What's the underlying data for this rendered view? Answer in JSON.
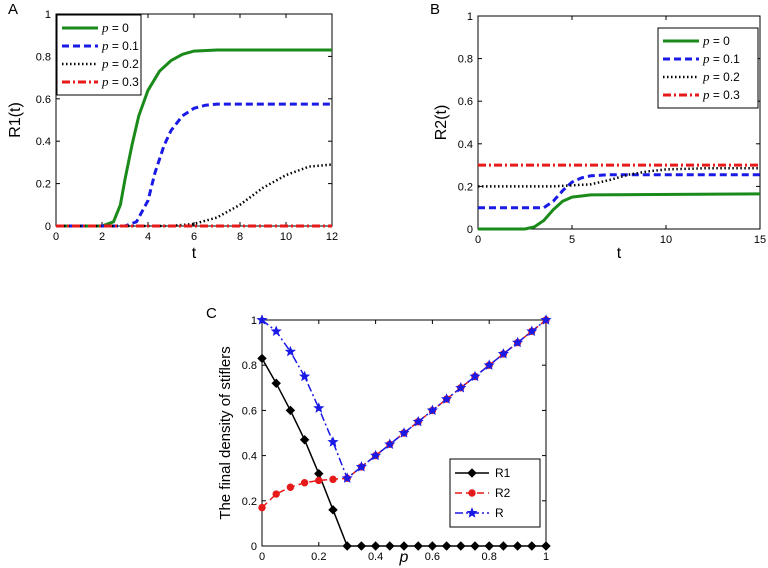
{
  "chart_data": [
    {
      "panel_letter": "A",
      "type": "line",
      "xlabel": "t",
      "ylabel": "R1(t)",
      "xlim": [
        0,
        12
      ],
      "ylim": [
        0,
        1
      ],
      "xticks": [
        0,
        2,
        4,
        6,
        8,
        10,
        12
      ],
      "yticks": [
        0,
        0.2,
        0.4,
        0.6,
        0.8,
        1
      ],
      "legend_position": "top-left",
      "series": [
        {
          "name": "p = 0",
          "p_label": "p",
          "value_label": "= 0",
          "color": "#1a8a1a",
          "dash": "solid",
          "points": [
            [
              0,
              0
            ],
            [
              2,
              0
            ],
            [
              2.5,
              0.02
            ],
            [
              2.8,
              0.1
            ],
            [
              3,
              0.22
            ],
            [
              3.3,
              0.38
            ],
            [
              3.6,
              0.52
            ],
            [
              4,
              0.64
            ],
            [
              4.5,
              0.73
            ],
            [
              5,
              0.78
            ],
            [
              5.5,
              0.81
            ],
            [
              6,
              0.825
            ],
            [
              7,
              0.83
            ],
            [
              12,
              0.83
            ]
          ]
        },
        {
          "name": "p = 0.1",
          "p_label": "p",
          "value_label": "= 0.1",
          "color": "#1a1ae6",
          "dash": "dashed",
          "points": [
            [
              0,
              0
            ],
            [
              3,
              0
            ],
            [
              3.5,
              0.02
            ],
            [
              4,
              0.12
            ],
            [
              4.3,
              0.25
            ],
            [
              4.7,
              0.38
            ],
            [
              5,
              0.45
            ],
            [
              5.5,
              0.52
            ],
            [
              6,
              0.555
            ],
            [
              6.5,
              0.57
            ],
            [
              7,
              0.575
            ],
            [
              12,
              0.575
            ]
          ]
        },
        {
          "name": "p = 0.2",
          "p_label": "p",
          "value_label": "= 0.2",
          "color": "#000000",
          "dash": "dotted",
          "points": [
            [
              0,
              0
            ],
            [
              5,
              0
            ],
            [
              6,
              0.01
            ],
            [
              7,
              0.04
            ],
            [
              8,
              0.1
            ],
            [
              9,
              0.18
            ],
            [
              10,
              0.24
            ],
            [
              11,
              0.28
            ],
            [
              12,
              0.29
            ]
          ]
        },
        {
          "name": "p = 0.3",
          "p_label": "p",
          "value_label": "= 0.3",
          "color": "#e61a1a",
          "dash": "dashdot",
          "points": [
            [
              0,
              0
            ],
            [
              12,
              0
            ]
          ]
        }
      ]
    },
    {
      "panel_letter": "B",
      "type": "line",
      "xlabel": "t",
      "ylabel": "R2(t)",
      "xlim": [
        0,
        15
      ],
      "ylim": [
        0,
        1
      ],
      "xticks": [
        0,
        5,
        10,
        15
      ],
      "yticks": [
        0,
        0.2,
        0.4,
        0.6,
        0.8,
        1
      ],
      "legend_position": "top-right",
      "series": [
        {
          "name": "p = 0",
          "p_label": "p",
          "value_label": "= 0",
          "color": "#1a8a1a",
          "dash": "solid",
          "points": [
            [
              0,
              0
            ],
            [
              2.5,
              0
            ],
            [
              3,
              0.01
            ],
            [
              3.5,
              0.04
            ],
            [
              4,
              0.09
            ],
            [
              4.5,
              0.13
            ],
            [
              5,
              0.15
            ],
            [
              6,
              0.16
            ],
            [
              15,
              0.165
            ]
          ]
        },
        {
          "name": "p = 0.1",
          "p_label": "p",
          "value_label": "= 0.1",
          "color": "#1a1ae6",
          "dash": "dashed",
          "points": [
            [
              0,
              0.1
            ],
            [
              3.5,
              0.1
            ],
            [
              4,
              0.13
            ],
            [
              4.5,
              0.18
            ],
            [
              5,
              0.22
            ],
            [
              5.5,
              0.24
            ],
            [
              6,
              0.25
            ],
            [
              7,
              0.255
            ],
            [
              15,
              0.255
            ]
          ]
        },
        {
          "name": "p = 0.2",
          "p_label": "p",
          "value_label": "= 0.2",
          "color": "#000000",
          "dash": "dotted",
          "points": [
            [
              0,
              0.2
            ],
            [
              4,
              0.2
            ],
            [
              6,
              0.21
            ],
            [
              7,
              0.23
            ],
            [
              8,
              0.255
            ],
            [
              9,
              0.27
            ],
            [
              10,
              0.28
            ],
            [
              12,
              0.285
            ],
            [
              15,
              0.285
            ]
          ]
        },
        {
          "name": "p = 0.3",
          "p_label": "p",
          "value_label": "= 0.3",
          "color": "#e61a1a",
          "dash": "dashdot",
          "points": [
            [
              0,
              0.3
            ],
            [
              15,
              0.3
            ]
          ]
        }
      ]
    },
    {
      "panel_letter": "C",
      "type": "line",
      "xlabel": "p",
      "ylabel": "The final density of stiflers",
      "xlim": [
        0,
        1
      ],
      "ylim": [
        0,
        1
      ],
      "xticks": [
        0,
        0.2,
        0.4,
        0.6,
        0.8,
        1
      ],
      "yticks": [
        0,
        0.2,
        0.4,
        0.6,
        0.8,
        1
      ],
      "legend_position": "bottom-right",
      "series": [
        {
          "name": "R1",
          "color": "#000000",
          "dash": "solid",
          "marker": "diamond",
          "x": [
            0,
            0.05,
            0.1,
            0.15,
            0.2,
            0.25,
            0.3,
            0.35,
            0.4,
            0.45,
            0.5,
            0.55,
            0.6,
            0.65,
            0.7,
            0.75,
            0.8,
            0.85,
            0.9,
            0.95,
            1
          ],
          "y": [
            0.83,
            0.72,
            0.6,
            0.47,
            0.32,
            0.16,
            0,
            0,
            0,
            0,
            0,
            0,
            0,
            0,
            0,
            0,
            0,
            0,
            0,
            0,
            0
          ]
        },
        {
          "name": "R2",
          "color": "#e61a1a",
          "dash": "dashed",
          "marker": "circle",
          "x": [
            0,
            0.05,
            0.1,
            0.15,
            0.2,
            0.25,
            0.3,
            0.35,
            0.4,
            0.45,
            0.5,
            0.55,
            0.6,
            0.65,
            0.7,
            0.75,
            0.8,
            0.85,
            0.9,
            0.95,
            1
          ],
          "y": [
            0.17,
            0.23,
            0.26,
            0.28,
            0.29,
            0.295,
            0.3,
            0.35,
            0.4,
            0.45,
            0.5,
            0.55,
            0.6,
            0.65,
            0.7,
            0.75,
            0.8,
            0.85,
            0.9,
            0.95,
            1
          ]
        },
        {
          "name": "R",
          "color": "#1a1ae6",
          "dash": "dashdot",
          "marker": "star",
          "x": [
            0,
            0.05,
            0.1,
            0.15,
            0.2,
            0.25,
            0.3,
            0.35,
            0.4,
            0.45,
            0.5,
            0.55,
            0.6,
            0.65,
            0.7,
            0.75,
            0.8,
            0.85,
            0.9,
            0.95,
            1
          ],
          "y": [
            1,
            0.95,
            0.86,
            0.75,
            0.61,
            0.46,
            0.3,
            0.35,
            0.4,
            0.45,
            0.5,
            0.55,
            0.6,
            0.65,
            0.7,
            0.75,
            0.8,
            0.85,
            0.9,
            0.95,
            1
          ]
        }
      ]
    }
  ]
}
